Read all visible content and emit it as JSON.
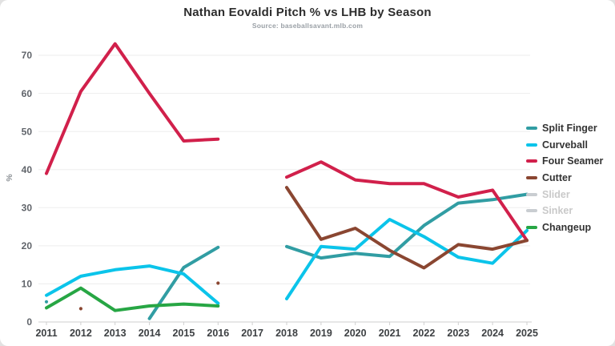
{
  "header": {
    "title": "Nathan Eovaldi Pitch % vs LHB by Season",
    "subtitle": "Source: baseballsavant.mlb.com"
  },
  "chart_data": {
    "type": "line",
    "title": "Nathan Eovaldi Pitch % vs LHB by Season",
    "subtitle": "Source: baseballsavant.mlb.com",
    "xlabel": "",
    "ylabel": "%",
    "x": [
      2011,
      2012,
      2013,
      2014,
      2015,
      2016,
      2017,
      2018,
      2019,
      2020,
      2021,
      2022,
      2023,
      2024,
      2025
    ],
    "yticks": [
      0,
      10,
      20,
      30,
      40,
      50,
      60,
      70
    ],
    "ylim": [
      0,
      75
    ],
    "grid": "horizontal",
    "legend_position": "right",
    "series": [
      {
        "name": "Split Finger",
        "color": "#319da3",
        "hidden": false,
        "values": [
          5.3,
          null,
          null,
          0.9,
          14.3,
          19.6,
          null,
          19.8,
          16.8,
          18.0,
          17.2,
          25.3,
          31.2,
          32.1,
          33.5
        ]
      },
      {
        "name": "Curveball",
        "color": "#0bc4ea",
        "hidden": false,
        "values": [
          7.0,
          12.0,
          13.7,
          14.7,
          12.6,
          4.9,
          null,
          6.1,
          19.8,
          19.1,
          26.9,
          22.4,
          17.0,
          15.4,
          24.0
        ]
      },
      {
        "name": "Four Seamer",
        "color": "#d1204b",
        "hidden": false,
        "values": [
          39.0,
          60.5,
          73.0,
          60.0,
          47.5,
          48.0,
          null,
          38.0,
          42.0,
          37.3,
          36.3,
          36.3,
          32.8,
          34.6,
          21.4
        ]
      },
      {
        "name": "Cutter",
        "color": "#8a4631",
        "hidden": false,
        "values": [
          null,
          3.5,
          null,
          null,
          null,
          10.2,
          null,
          35.3,
          21.7,
          24.6,
          18.8,
          14.2,
          20.3,
          19.1,
          21.4
        ]
      },
      {
        "name": "Slider",
        "color": "#c9cdd1",
        "hidden": true,
        "values": []
      },
      {
        "name": "Sinker",
        "color": "#c9cdd1",
        "hidden": true,
        "values": []
      },
      {
        "name": "Changeup",
        "color": "#27a644",
        "hidden": false,
        "values": [
          3.7,
          8.9,
          3.0,
          4.2,
          4.7,
          4.2,
          null,
          null,
          null,
          null,
          null,
          null,
          null,
          null,
          null
        ]
      }
    ]
  }
}
